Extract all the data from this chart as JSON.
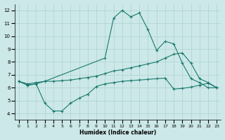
{
  "xlabel": "Humidex (Indice chaleur)",
  "xlim": [
    -0.5,
    23.5
  ],
  "ylim": [
    3.5,
    12.5
  ],
  "xticks": [
    0,
    1,
    2,
    3,
    4,
    5,
    6,
    7,
    8,
    9,
    10,
    11,
    12,
    13,
    14,
    15,
    16,
    17,
    18,
    19,
    20,
    21,
    22,
    23
  ],
  "yticks": [
    4,
    5,
    6,
    7,
    8,
    9,
    10,
    11,
    12
  ],
  "background_color": "#cce8e8",
  "line_color": "#1a7a6e",
  "line1_x": [
    0,
    1,
    2,
    3,
    10,
    11,
    12,
    13,
    14,
    15,
    16,
    17,
    18,
    19,
    20,
    21,
    22,
    23
  ],
  "line1_y": [
    6.5,
    6.2,
    6.3,
    6.5,
    8.3,
    11.4,
    12.0,
    11.5,
    11.8,
    10.5,
    8.9,
    9.6,
    9.4,
    7.9,
    6.7,
    6.4,
    6.0,
    6.0
  ],
  "line2_x": [
    0,
    1,
    2,
    3,
    4,
    5,
    6,
    7,
    8,
    9,
    10,
    11,
    12,
    13,
    14,
    15,
    16,
    17,
    18,
    19,
    20,
    21,
    22,
    23
  ],
  "line2_y": [
    6.5,
    6.3,
    6.4,
    6.5,
    6.5,
    6.55,
    6.6,
    6.7,
    6.8,
    6.9,
    7.1,
    7.3,
    7.4,
    7.55,
    7.7,
    7.85,
    8.0,
    8.3,
    8.6,
    8.7,
    7.9,
    6.7,
    6.4,
    6.0
  ],
  "line3_x": [
    0,
    1,
    2,
    3,
    4,
    5,
    6,
    7,
    8,
    9,
    10,
    11,
    12,
    13,
    14,
    15,
    16,
    17,
    18,
    19,
    20,
    21,
    22,
    23
  ],
  "line3_y": [
    6.5,
    6.2,
    6.3,
    4.8,
    4.2,
    4.2,
    4.8,
    5.2,
    5.5,
    6.1,
    6.3,
    6.4,
    6.5,
    6.55,
    6.6,
    6.65,
    6.7,
    6.75,
    5.9,
    5.95,
    6.05,
    6.2,
    6.35,
    6.0
  ]
}
